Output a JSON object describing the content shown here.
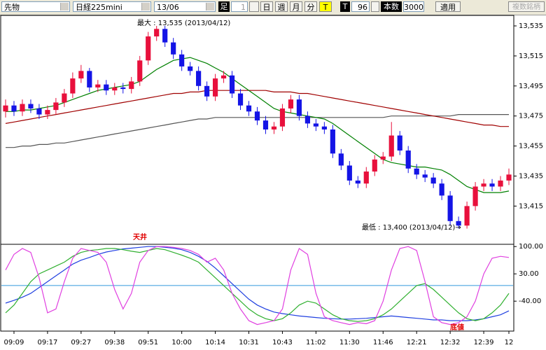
{
  "toolbar": {
    "market": "先物",
    "product": "日経225mini",
    "contract": "13/06",
    "bar_label": "足",
    "bar_size": "1",
    "periods": [
      "日",
      "週",
      "月",
      "分",
      "T"
    ],
    "selected_period": 4,
    "tick_label": "T",
    "tick_value": "96",
    "count_label": "本数",
    "count_value": "3000",
    "apply": "適用",
    "multi": "複数銘柄"
  },
  "chart_data": [
    {
      "type": "candlestick",
      "annotations": [
        "最大 : 13,535 (2013/04/12)",
        "最低 : 13,400 (2013/04/12)→"
      ],
      "xlim": [
        -0.5,
        60.5
      ],
      "xticks": [
        {
          "value": 1,
          "label": "09:09"
        },
        {
          "value": 5,
          "label": "09:17"
        },
        {
          "value": 9,
          "label": "09:27"
        },
        {
          "value": 13,
          "label": "09:38"
        },
        {
          "value": 17,
          "label": "09:51"
        },
        {
          "value": 21,
          "label": "10:00"
        },
        {
          "value": 25,
          "label": "10:14"
        },
        {
          "value": 29,
          "label": "10:31"
        },
        {
          "value": 33,
          "label": "10:43"
        },
        {
          "value": 37,
          "label": "11:02"
        },
        {
          "value": 41,
          "label": "11:30"
        },
        {
          "value": 45,
          "label": "11:46"
        },
        {
          "value": 49,
          "label": "12:21"
        },
        {
          "value": 53,
          "label": "12:32"
        },
        {
          "value": 57,
          "label": "12:39"
        },
        {
          "value": 60,
          "label": "12"
        }
      ],
      "ylim": [
        13390,
        13542
      ],
      "yticks": [
        {
          "value": 13535,
          "label": "13,535"
        },
        {
          "value": 13515,
          "label": "13,515"
        },
        {
          "value": 13495,
          "label": "13,495"
        },
        {
          "value": 13475,
          "label": "13,475"
        },
        {
          "value": 13455,
          "label": "13,455"
        },
        {
          "value": 13435,
          "label": "13,435"
        },
        {
          "value": 13415,
          "label": "13,415"
        }
      ],
      "up_color": "#e8103c",
      "down_color": "#1414e6",
      "open": [
        13478,
        13482,
        13478,
        13483,
        13480,
        13476,
        13479,
        13484,
        13490,
        13500,
        13505,
        13494,
        13496,
        13492,
        13494,
        13493,
        13498,
        13512,
        13528,
        13533,
        13524,
        13516,
        13508,
        13505,
        13495,
        13488,
        13500,
        13502,
        13490,
        13482,
        13478,
        13472,
        13466,
        13468,
        13480,
        13486,
        13475,
        13470,
        13468,
        13466,
        13450,
        13442,
        13432,
        13430,
        13438,
        13446,
        13448,
        13462,
        13452,
        13440,
        13436,
        13434,
        13430,
        13422,
        13405,
        13402,
        13415,
        13428,
        13430,
        13428,
        13432
      ],
      "high": [
        13486,
        13485,
        13486,
        13486,
        13483,
        13482,
        13487,
        13493,
        13504,
        13509,
        13507,
        13499,
        13499,
        13497,
        13497,
        13501,
        13515,
        13531,
        13535,
        13535,
        13527,
        13519,
        13511,
        13508,
        13498,
        13503,
        13505,
        13505,
        13493,
        13485,
        13481,
        13475,
        13471,
        13483,
        13489,
        13489,
        13478,
        13473,
        13471,
        13469,
        13453,
        13445,
        13435,
        13441,
        13449,
        13451,
        13471,
        13465,
        13455,
        13443,
        13439,
        13437,
        13433,
        13425,
        13408,
        13418,
        13431,
        13433,
        13433,
        13435,
        13440
      ],
      "low": [
        13474,
        13475,
        13475,
        13477,
        13473,
        13473,
        13476,
        13481,
        13487,
        13497,
        13491,
        13491,
        13489,
        13489,
        13490,
        13490,
        13495,
        13509,
        13525,
        13521,
        13513,
        13505,
        13502,
        13492,
        13485,
        13485,
        13497,
        13487,
        13479,
        13475,
        13469,
        13463,
        13463,
        13465,
        13477,
        13472,
        13467,
        13465,
        13463,
        13447,
        13439,
        13429,
        13427,
        13427,
        13435,
        13443,
        13445,
        13449,
        13437,
        13433,
        13431,
        13427,
        13419,
        13402,
        13400,
        13400,
        13412,
        13425,
        13425,
        13425,
        13429
      ],
      "close": [
        13482,
        13478,
        13483,
        13480,
        13476,
        13479,
        13484,
        13490,
        13500,
        13505,
        13494,
        13496,
        13492,
        13494,
        13493,
        13498,
        13512,
        13528,
        13533,
        13524,
        13516,
        13508,
        13505,
        13495,
        13488,
        13500,
        13502,
        13490,
        13482,
        13478,
        13472,
        13466,
        13468,
        13480,
        13486,
        13475,
        13470,
        13468,
        13466,
        13450,
        13442,
        13432,
        13430,
        13438,
        13446,
        13448,
        13462,
        13452,
        13440,
        13436,
        13434,
        13430,
        13422,
        13405,
        13402,
        13415,
        13428,
        13430,
        13428,
        13432,
        13436
      ],
      "series": [
        {
          "color": "#555555",
          "values": [
            13454,
            13454,
            13455,
            13455,
            13456,
            13456,
            13457,
            13457,
            13458,
            13459,
            13460,
            13461,
            13462,
            13463,
            13464,
            13465,
            13466,
            13467,
            13468,
            13469,
            13470,
            13471,
            13472,
            13473,
            13473,
            13474,
            13474,
            13474,
            13474,
            13474,
            13474,
            13474,
            13474,
            13474,
            13474,
            13474,
            13474,
            13474,
            13474,
            13474,
            13474,
            13474,
            13474,
            13474,
            13474,
            13474,
            13475,
            13475,
            13475,
            13475,
            13475,
            13475,
            13475,
            13475,
            13476,
            13476,
            13476,
            13476,
            13476,
            13476,
            13476
          ]
        },
        {
          "color": "#a00000",
          "values": [
            13470,
            13471,
            13472,
            13473,
            13474,
            13475,
            13476,
            13477,
            13478,
            13479,
            13480,
            13481,
            13482,
            13483,
            13484,
            13485,
            13486,
            13487,
            13488,
            13489,
            13490,
            13490,
            13491,
            13491,
            13492,
            13492,
            13492,
            13492,
            13492,
            13492,
            13492,
            13492,
            13491,
            13491,
            13491,
            13490,
            13490,
            13489,
            13488,
            13487,
            13486,
            13485,
            13484,
            13483,
            13482,
            13481,
            13480,
            13479,
            13478,
            13477,
            13476,
            13475,
            13474,
            13473,
            13472,
            13471,
            13470,
            13469,
            13469,
            13468,
            13468
          ]
        },
        {
          "color": "#008000",
          "values": [
            13478,
            13478,
            13479,
            13479,
            13480,
            13481,
            13482,
            13484,
            13486,
            13488,
            13490,
            13492,
            13493,
            13494,
            13495,
            13496,
            13498,
            13502,
            13506,
            13509,
            13512,
            13513,
            13514,
            13512,
            13510,
            13507,
            13504,
            13500,
            13496,
            13492,
            13488,
            13484,
            13480,
            13478,
            13477,
            13476,
            13475,
            13474,
            13473,
            13470,
            13466,
            13462,
            13458,
            13454,
            13450,
            13446,
            13444,
            13443,
            13442,
            13441,
            13441,
            13440,
            13439,
            13436,
            13432,
            13428,
            13426,
            13424,
            13424,
            13424,
            13425
          ]
        }
      ]
    },
    {
      "type": "line",
      "annotations": [
        "天井",
        "底値"
      ],
      "xlim": [
        -0.5,
        60.5
      ],
      "ylim": [
        -115,
        104
      ],
      "yticks": [
        {
          "value": 100,
          "label": "100.00"
        },
        {
          "value": 30,
          "label": "30.00"
        },
        {
          "value": -40,
          "label": "-40.00"
        }
      ],
      "hline": 0,
      "hline_color": "#3399dd",
      "series": [
        {
          "color": "#2040e0",
          "values": [
            -45,
            -38,
            -30,
            -20,
            -5,
            10,
            25,
            40,
            55,
            65,
            72,
            80,
            86,
            90,
            94,
            96,
            98,
            100,
            100,
            98,
            96,
            92,
            85,
            75,
            62,
            45,
            25,
            5,
            -15,
            -35,
            -50,
            -60,
            -68,
            -72,
            -75,
            -78,
            -80,
            -82,
            -84,
            -85,
            -86,
            -86,
            -85,
            -84,
            -82,
            -80,
            -78,
            -80,
            -82,
            -84,
            -86,
            -88,
            -88,
            -90,
            -90,
            -90,
            -88,
            -85,
            -80,
            -75,
            -65
          ]
        },
        {
          "color": "#30b030",
          "values": [
            -70,
            -50,
            -20,
            10,
            30,
            40,
            50,
            60,
            75,
            85,
            90,
            92,
            95,
            95,
            92,
            88,
            85,
            90,
            95,
            92,
            85,
            78,
            70,
            60,
            40,
            20,
            0,
            -20,
            -40,
            -60,
            -75,
            -85,
            -90,
            -85,
            -70,
            -50,
            -40,
            -45,
            -60,
            -75,
            -85,
            -90,
            -92,
            -90,
            -85,
            -75,
            -60,
            -40,
            -20,
            0,
            5,
            -10,
            -30,
            -50,
            -70,
            -85,
            -90,
            -85,
            -70,
            -50,
            -20
          ]
        },
        {
          "color": "#e040e0",
          "values": [
            40,
            80,
            95,
            85,
            20,
            -70,
            -60,
            10,
            70,
            95,
            90,
            85,
            60,
            -10,
            -60,
            -20,
            60,
            90,
            100,
            100,
            98,
            95,
            90,
            80,
            60,
            70,
            40,
            -20,
            -60,
            -90,
            -100,
            -95,
            -90,
            -60,
            40,
            95,
            80,
            -20,
            -80,
            -90,
            -95,
            -100,
            -95,
            -98,
            -90,
            -40,
            40,
            95,
            100,
            90,
            10,
            -80,
            -95,
            -100,
            -95,
            -80,
            -40,
            30,
            70,
            75,
            72
          ]
        }
      ]
    }
  ]
}
